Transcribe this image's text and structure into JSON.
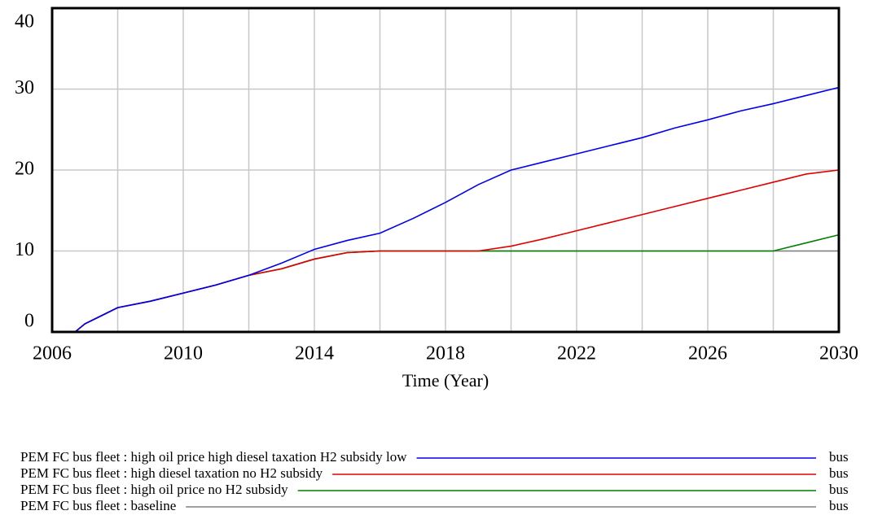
{
  "chart_data": {
    "type": "line",
    "x_label": "Time (Year)",
    "x": [
      2006,
      2006.7,
      2007,
      2008,
      2009,
      2010,
      2011,
      2012,
      2013,
      2014,
      2015,
      2016,
      2017,
      2018,
      2019,
      2020,
      2021,
      2022,
      2023,
      2024,
      2025,
      2026,
      2027,
      2028,
      2029,
      2030
    ],
    "series": [
      {
        "name": "PEM FC bus fleet : high oil price high diesel taxation H2 subsidy low",
        "unit": "bus",
        "color": "#0000ee",
        "values": [
          0,
          0,
          1,
          3,
          3.8,
          4.8,
          5.8,
          7,
          8.5,
          10.2,
          11.3,
          12.2,
          14,
          16,
          18.2,
          20,
          21,
          22,
          23,
          24,
          25.2,
          26.2,
          27.3,
          28.2,
          29.2,
          30.2
        ]
      },
      {
        "name": "PEM FC bus fleet : high diesel taxation no H2 subsidy",
        "unit": "bus",
        "color": "#e00000",
        "values": [
          0,
          0,
          1,
          3,
          3.8,
          4.8,
          5.8,
          7,
          7.8,
          9,
          9.8,
          10,
          10,
          10,
          10,
          10.6,
          11.5,
          12.5,
          13.5,
          14.5,
          15.5,
          16.5,
          17.5,
          18.5,
          19.5,
          20
        ]
      },
      {
        "name": "PEM FC bus fleet : high oil price no H2 subsidy",
        "unit": "bus",
        "color": "#008000",
        "values": [
          0,
          0,
          1,
          3,
          3.8,
          4.8,
          5.8,
          7,
          7.8,
          9,
          9.8,
          10,
          10,
          10,
          10,
          10,
          10,
          10,
          10,
          10,
          10,
          10,
          10,
          10,
          11,
          12
        ]
      },
      {
        "name": "PEM FC bus fleet : baseline",
        "unit": "bus",
        "color": "#808080",
        "values": [
          0,
          0,
          1,
          3,
          3.8,
          4.8,
          5.8,
          7,
          7.8,
          9,
          9.8,
          10,
          10,
          10,
          10,
          10,
          10,
          10,
          10,
          10,
          10,
          10,
          10,
          10,
          10,
          10
        ]
      }
    ],
    "xlim": [
      2006,
      2030
    ],
    "xticks": [
      2006,
      2010,
      2014,
      2018,
      2022,
      2026,
      2030
    ],
    "xgrid": [
      2008,
      2010,
      2012,
      2014,
      2016,
      2018,
      2020,
      2022,
      2024,
      2026,
      2028
    ],
    "ylim": [
      0,
      40
    ],
    "yticks": [
      0,
      10,
      20,
      30,
      40
    ],
    "grid": true
  }
}
